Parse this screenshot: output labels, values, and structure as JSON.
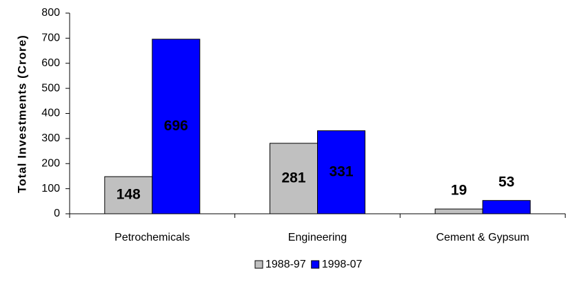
{
  "chart_data": {
    "type": "bar",
    "y_label": "Total Investments (Crore)",
    "categories": [
      "Petrochemicals",
      "Engineering",
      "Cement & Gypsum"
    ],
    "series": [
      {
        "name": "1988-97",
        "color": "#c0c0c0",
        "values": [
          148,
          281,
          19
        ]
      },
      {
        "name": "1998-07",
        "color": "#0000ff",
        "values": [
          696,
          331,
          53
        ]
      }
    ],
    "ylim": [
      0,
      800
    ],
    "yticks": [
      0,
      100,
      200,
      300,
      400,
      500,
      600,
      700,
      800
    ],
    "grid": false,
    "legend": "bottom"
  }
}
